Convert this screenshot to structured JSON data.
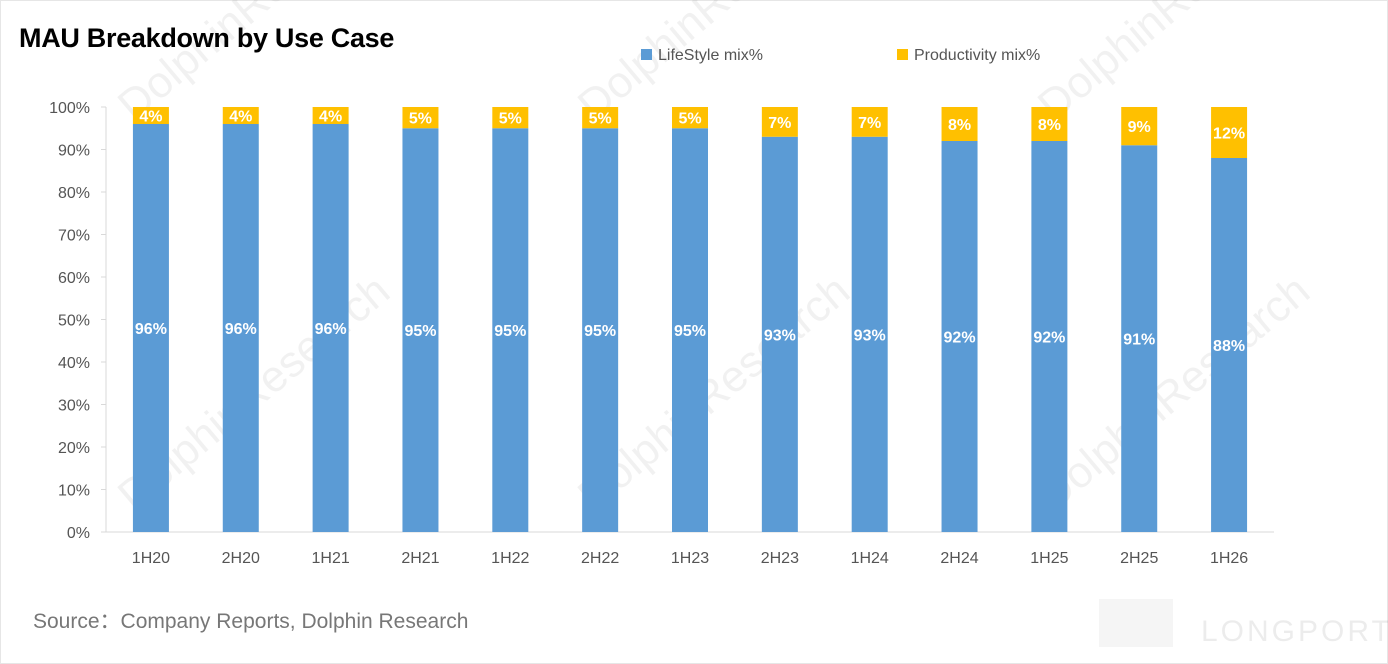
{
  "page": {
    "source": "Source：Company Reports, Dolphin Research",
    "watermark_text": "DolphinResearch",
    "watermark_brand": "LONGPORT"
  },
  "chart_data": {
    "type": "bar",
    "stacked": true,
    "title": "MAU Breakdown by Use Case",
    "categories": [
      "1H20",
      "2H20",
      "1H21",
      "2H21",
      "1H22",
      "2H22",
      "1H23",
      "2H23",
      "1H24",
      "2H24",
      "1H25",
      "2H25",
      "1H26"
    ],
    "series": [
      {
        "name": "LifeStyle mix%",
        "color": "#5b9bd5",
        "values": [
          96,
          96,
          96,
          95,
          95,
          95,
          95,
          93,
          93,
          92,
          92,
          91,
          88
        ],
        "labels": [
          "96%",
          "96%",
          "96%",
          "95%",
          "95%",
          "95%",
          "95%",
          "93%",
          "93%",
          "92%",
          "92%",
          "91%",
          "88%"
        ]
      },
      {
        "name": "Productivity mix%",
        "color": "#ffc000",
        "values": [
          4,
          4,
          4,
          5,
          5,
          5,
          5,
          7,
          7,
          8,
          8,
          9,
          12
        ],
        "labels": [
          "4%",
          "4%",
          "4%",
          "5%",
          "5%",
          "5%",
          "5%",
          "7%",
          "7%",
          "8%",
          "8%",
          "9%",
          "12%"
        ]
      }
    ],
    "ylim": [
      0,
      100
    ],
    "yticks": [
      "0%",
      "10%",
      "20%",
      "30%",
      "40%",
      "50%",
      "60%",
      "70%",
      "80%",
      "90%",
      "100%"
    ],
    "legend_position": "top",
    "grid": false
  }
}
